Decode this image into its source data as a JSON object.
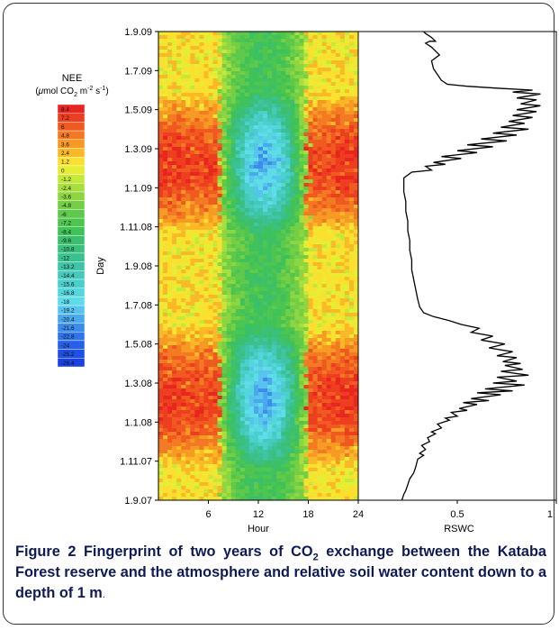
{
  "chart_data": [
    {
      "type": "heatmap",
      "title": "",
      "xlabel": "Hour",
      "ylabel": "Day",
      "x_ticks": [
        "6",
        "12",
        "18",
        "24"
      ],
      "xlim": [
        0,
        24
      ],
      "y_ticks": [
        "1.9.09",
        "1.7.09",
        "1.5.09",
        "1.3.09",
        "1.1.09",
        "1.11.08",
        "1.9.08",
        "1.7.08",
        "1.5.08",
        "1.3.08",
        "1.1.08",
        "1.11.07",
        "1.9.07"
      ],
      "ylim": [
        "1.9.07",
        "1.9.09"
      ],
      "colorbar": {
        "title_line1": "NEE",
        "title_line2_prefix": "(",
        "title_mu": "μ",
        "title_line2_mid": "mol CO",
        "title_sub": "2",
        "title_line2_unit": " m",
        "title_sup1": "-2",
        "title_line2_s": " s",
        "title_sup2": "-1",
        "title_line2_suffix": ")",
        "labels": [
          "8.4",
          "7.2",
          "6",
          "4.8",
          "3.6",
          "2.4",
          "1.2",
          "0",
          "-1.2",
          "-2.4",
          "-3.6",
          "-4.8",
          "-6",
          "-7.2",
          "-8.4",
          "-9.6",
          "-10.8",
          "-12",
          "-13.2",
          "-14.4",
          "-15.6",
          "-16.8",
          "-18",
          "-19.2",
          "-20.4",
          "-21.6",
          "-22.8",
          "-24",
          "-25.2",
          "-26.4"
        ],
        "colors": [
          "#e8251f",
          "#ed3e1f",
          "#f05a20",
          "#f37a22",
          "#f79a23",
          "#fbb827",
          "#fbe030",
          "#e6ee33",
          "#c6e83b",
          "#a8df3f",
          "#8dd641",
          "#74cf45",
          "#5ec94b",
          "#4dc54f",
          "#3fc25a",
          "#3bbf6b",
          "#3bbf7d",
          "#3bc190",
          "#3fc4a6",
          "#45c9bb",
          "#4bcfcc",
          "#55d6dc",
          "#5fdcea",
          "#58c4ee",
          "#4aa9ec",
          "#3c8deb",
          "#3074ea",
          "#2660e8",
          "#1f4fe5",
          "#1a42e2"
        ]
      }
    },
    {
      "type": "line",
      "xlabel": "RSWC",
      "x_ticks": [
        "0.5",
        "1"
      ],
      "xlim": [
        0,
        1
      ],
      "ylim": [
        "1.9.07",
        "1.9.09"
      ],
      "series": [
        {
          "points": [
            [
              0.22,
              0.0
            ],
            [
              0.23,
              0.3
            ],
            [
              0.24,
              0.5
            ],
            [
              0.25,
              0.8
            ],
            [
              0.26,
              1.1
            ],
            [
              0.28,
              1.4
            ],
            [
              0.29,
              1.7
            ],
            [
              0.3,
              2.1
            ],
            [
              0.33,
              2.3
            ],
            [
              0.31,
              2.4
            ],
            [
              0.34,
              2.6
            ],
            [
              0.32,
              2.8
            ],
            [
              0.36,
              3.0
            ],
            [
              0.35,
              3.2
            ],
            [
              0.39,
              3.4
            ],
            [
              0.37,
              3.5
            ],
            [
              0.42,
              3.7
            ],
            [
              0.4,
              3.9
            ],
            [
              0.46,
              4.1
            ],
            [
              0.44,
              4.2
            ],
            [
              0.5,
              4.3
            ],
            [
              0.47,
              4.5
            ],
            [
              0.55,
              4.6
            ],
            [
              0.51,
              4.7
            ],
            [
              0.6,
              4.9
            ],
            [
              0.53,
              5.0
            ],
            [
              0.66,
              5.1
            ],
            [
              0.57,
              5.2
            ],
            [
              0.72,
              5.4
            ],
            [
              0.6,
              5.5
            ],
            [
              0.78,
              5.6
            ],
            [
              0.64,
              5.7
            ],
            [
              0.84,
              5.9
            ],
            [
              0.68,
              6.0
            ],
            [
              0.8,
              6.1
            ],
            [
              0.7,
              6.3
            ],
            [
              0.86,
              6.4
            ],
            [
              0.72,
              6.6
            ],
            [
              0.83,
              6.7
            ],
            [
              0.74,
              6.9
            ],
            [
              0.82,
              7.0
            ],
            [
              0.73,
              7.1
            ],
            [
              0.8,
              7.3
            ],
            [
              0.7,
              7.4
            ],
            [
              0.78,
              7.6
            ],
            [
              0.66,
              7.8
            ],
            [
              0.74,
              8.0
            ],
            [
              0.62,
              8.2
            ],
            [
              0.68,
              8.4
            ],
            [
              0.57,
              8.6
            ],
            [
              0.61,
              8.8
            ],
            [
              0.52,
              9.0
            ],
            [
              0.46,
              9.2
            ],
            [
              0.38,
              9.4
            ],
            [
              0.33,
              9.6
            ],
            [
              0.31,
              9.9
            ],
            [
              0.3,
              10.3
            ],
            [
              0.29,
              10.8
            ],
            [
              0.28,
              11.3
            ],
            [
              0.27,
              11.8
            ],
            [
              0.27,
              12.3
            ],
            [
              0.26,
              12.8
            ],
            [
              0.26,
              13.3
            ],
            [
              0.25,
              13.8
            ],
            [
              0.25,
              14.3
            ],
            [
              0.24,
              14.8
            ],
            [
              0.24,
              15.3
            ],
            [
              0.23,
              15.8
            ],
            [
              0.23,
              16.5
            ],
            [
              0.27,
              16.8
            ],
            [
              0.37,
              16.9
            ],
            [
              0.34,
              17.1
            ],
            [
              0.44,
              17.2
            ],
            [
              0.38,
              17.3
            ],
            [
              0.52,
              17.5
            ],
            [
              0.42,
              17.6
            ],
            [
              0.6,
              17.8
            ],
            [
              0.5,
              17.9
            ],
            [
              0.68,
              18.1
            ],
            [
              0.55,
              18.2
            ],
            [
              0.75,
              18.4
            ],
            [
              0.62,
              18.5
            ],
            [
              0.8,
              18.7
            ],
            [
              0.68,
              18.8
            ],
            [
              0.86,
              19.0
            ],
            [
              0.72,
              19.1
            ],
            [
              0.84,
              19.3
            ],
            [
              0.76,
              19.4
            ],
            [
              0.88,
              19.6
            ],
            [
              0.78,
              19.7
            ],
            [
              0.9,
              19.9
            ],
            [
              0.8,
              20.0
            ],
            [
              0.92,
              20.2
            ],
            [
              0.82,
              20.3
            ],
            [
              0.9,
              20.5
            ],
            [
              0.8,
              20.6
            ],
            [
              0.92,
              20.8
            ],
            [
              0.78,
              20.9
            ],
            [
              0.88,
              21.0
            ],
            [
              0.7,
              21.1
            ],
            [
              0.55,
              21.2
            ],
            [
              0.45,
              21.3
            ],
            [
              0.42,
              21.5
            ],
            [
              0.4,
              21.8
            ],
            [
              0.38,
              22.1
            ],
            [
              0.37,
              22.5
            ],
            [
              0.41,
              22.8
            ],
            [
              0.39,
              23.0
            ],
            [
              0.37,
              23.2
            ],
            [
              0.34,
              23.4
            ],
            [
              0.36,
              23.5
            ],
            [
              0.39,
              23.5
            ],
            [
              0.37,
              23.7
            ],
            [
              0.34,
              23.9
            ],
            [
              0.33,
              24.0
            ]
          ]
        }
      ]
    }
  ],
  "caption": {
    "label": "Figure 2",
    "text_part1": " Fingerprint of two years of CO",
    "sub": "2",
    "text_part2": " exchange between the Kataba Forest reserve and the atmosphere and relative soil water content down to a depth of 1 m",
    "end": "."
  }
}
